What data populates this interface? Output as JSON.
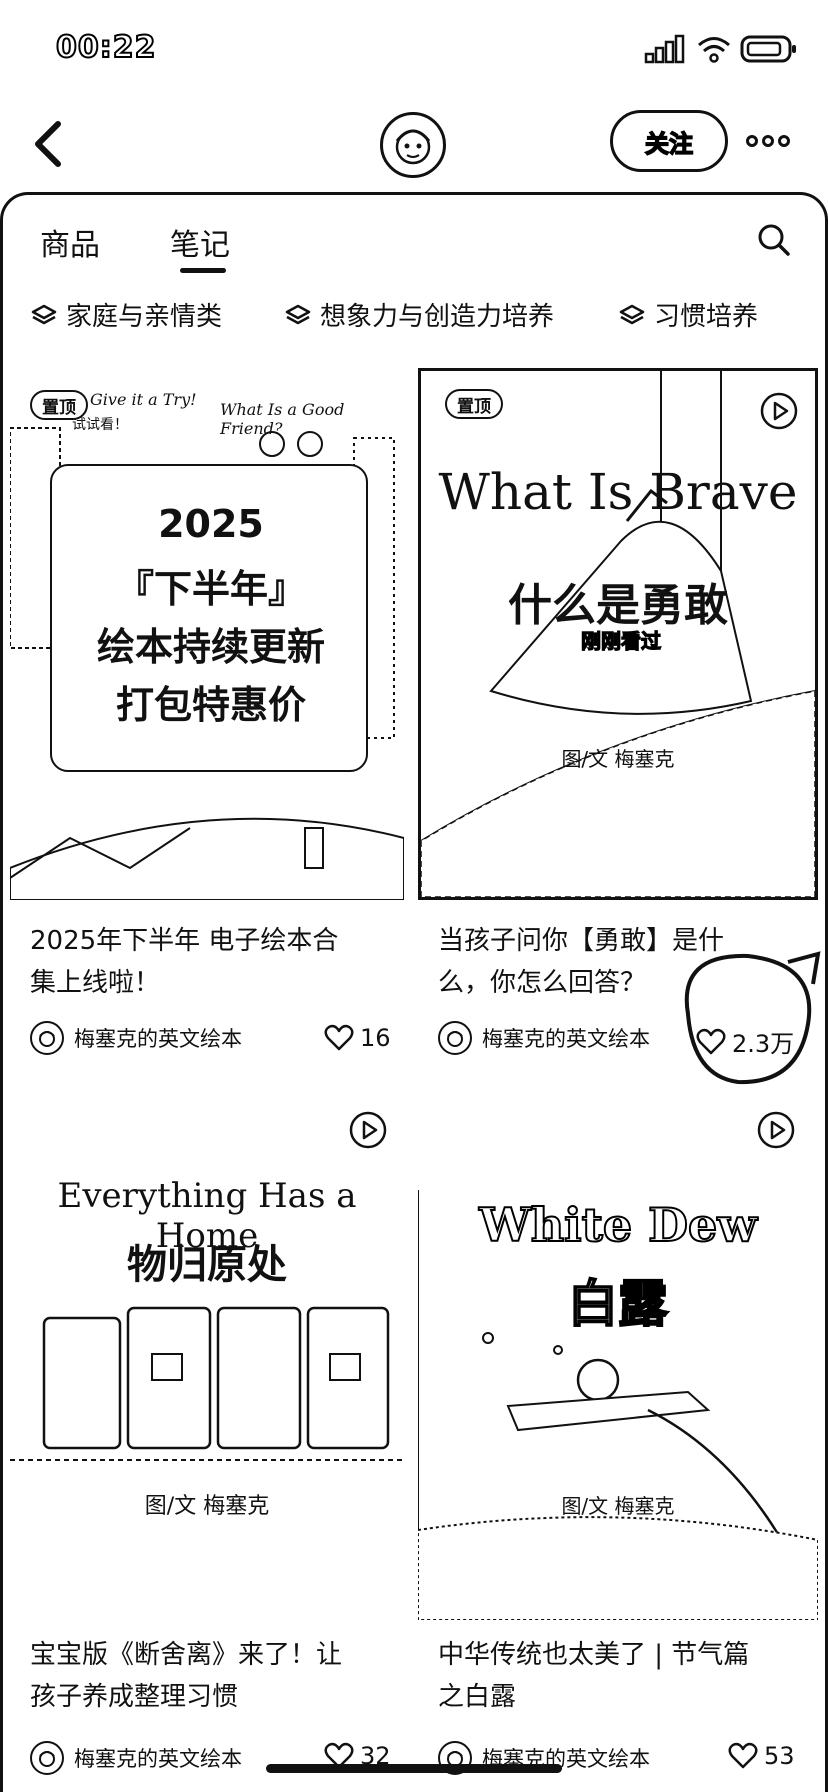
{
  "status_bar": {
    "time": "00:22"
  },
  "header": {
    "follow_label": "关注"
  },
  "tabs": [
    {
      "label": "商品"
    },
    {
      "label": "笔记"
    }
  ],
  "chips": [
    {
      "label": "家庭与亲情类"
    },
    {
      "label": "想象力与创造力培养"
    },
    {
      "label": "习惯培养"
    }
  ],
  "cards": [
    {
      "pin": "置顶",
      "cover_lines": [
        "2025",
        "『下半年』",
        "绘本持续更新",
        "打包特惠价"
      ],
      "cover_small_1": "Give it a Try!",
      "cover_small_2": "试试看！",
      "cover_small_3": "What Is a Good Friend?",
      "title_line1": "2025年下半年 电子绘本合",
      "title_line2": "集上线啦！",
      "author": "梅塞克的英文绘本",
      "likes": "16"
    },
    {
      "pin": "置顶",
      "cover_en": "What Is Brave",
      "cover_cn": "什么是勇敢",
      "cover_badge": "刚刚看过",
      "cover_credit": "图/文 梅塞克",
      "title_line1": "当孩子问你【勇敢】是什",
      "title_line2": "么，你怎么回答？",
      "author": "梅塞克的英文绘本",
      "likes": "2.3万"
    },
    {
      "cover_en": "Everything Has a Home",
      "cover_cn": "物归原处",
      "cover_credit": "图/文 梅塞克",
      "title_line1": "宝宝版《断舍离》来了！让",
      "title_line2": "孩子养成整理习惯",
      "author": "梅塞克的英文绘本",
      "likes": "32"
    },
    {
      "cover_en": "White Dew",
      "cover_cn": "白露",
      "cover_credit": "图/文 梅塞克",
      "title_line1": "中华传统也太美了 | 节气篇",
      "title_line2": "之白露",
      "author": "梅塞克的英文绘本",
      "likes": "53"
    }
  ]
}
